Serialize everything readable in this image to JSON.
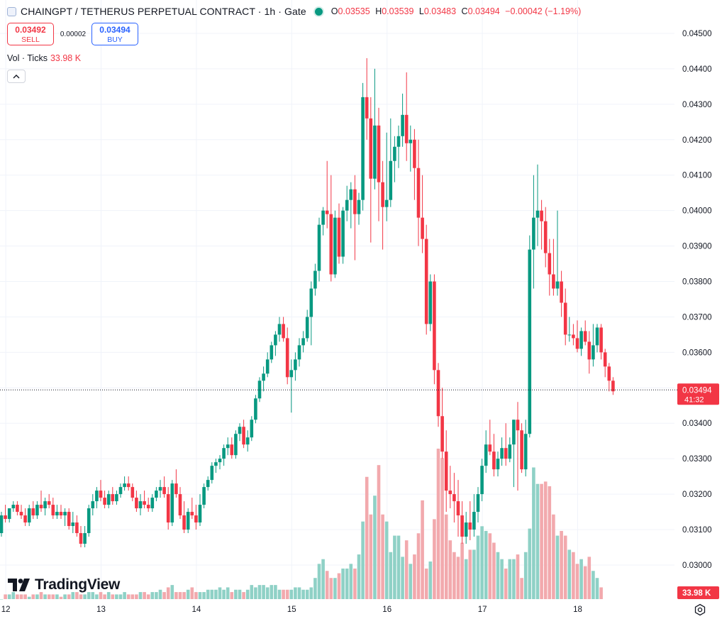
{
  "header": {
    "title": "CHAINGPT / TETHERUS PERPETUAL CONTRACT · 1h · Gate",
    "open_label": "O",
    "open": "0.03535",
    "high_label": "H",
    "high": "0.03539",
    "low_label": "L",
    "low": "0.03483",
    "close_label": "C",
    "close": "0.03494",
    "change": "−0.00042 (−1.19%)"
  },
  "trade": {
    "sell_price": "0.03492",
    "sell_label": "SELL",
    "spread": "0.00002",
    "buy_price": "0.03494",
    "buy_label": "BUY"
  },
  "volume_legend": {
    "label": "Vol · Ticks",
    "value": "33.98 K"
  },
  "watermark": "TradingView",
  "colors": {
    "up": "#089981",
    "down": "#f23645",
    "up_volume": "#8fd1c6",
    "down_volume": "#f2a9ad",
    "grid": "#f0f3fa"
  },
  "icons": {
    "collapse": "chevron-up-icon",
    "settings": "settings-icon",
    "logo": "tradingview-logo-icon"
  },
  "chart_data": {
    "type": "candlestick",
    "interval": "1h",
    "price_axis": {
      "min": 0.029,
      "max": 0.0455,
      "ticks": [
        "0.03000",
        "0.03100",
        "0.03200",
        "0.03300",
        "0.03400",
        "0.03500",
        "0.03600",
        "0.03700",
        "0.03800",
        "0.03900",
        "0.04000",
        "0.04100",
        "0.04200",
        "0.04300",
        "0.04400",
        "0.04500"
      ]
    },
    "time_axis": {
      "labels": [
        "12",
        "13",
        "14",
        "15",
        "16",
        "17",
        "18"
      ]
    },
    "last_price": {
      "price": "0.03494",
      "countdown": "41:32",
      "value": 0.03494
    },
    "last_volume_label": "33.98 K",
    "ohlc": [
      [
        0.0309,
        0.0315,
        0.0308,
        0.0314
      ],
      [
        0.0314,
        0.0317,
        0.0312,
        0.0313
      ],
      [
        0.0313,
        0.0316,
        0.0312,
        0.0316
      ],
      [
        0.0316,
        0.0318,
        0.0315,
        0.0317
      ],
      [
        0.0317,
        0.0318,
        0.0314,
        0.0315
      ],
      [
        0.0315,
        0.0317,
        0.0313,
        0.0314
      ],
      [
        0.0314,
        0.0316,
        0.0311,
        0.0312
      ],
      [
        0.0312,
        0.0317,
        0.0311,
        0.0316
      ],
      [
        0.0316,
        0.0318,
        0.0313,
        0.0314
      ],
      [
        0.0314,
        0.0318,
        0.0313,
        0.0317
      ],
      [
        0.0317,
        0.0321,
        0.0315,
        0.0316
      ],
      [
        0.0316,
        0.0319,
        0.0314,
        0.0318
      ],
      [
        0.0318,
        0.032,
        0.0316,
        0.0317
      ],
      [
        0.0317,
        0.0319,
        0.0313,
        0.0314
      ],
      [
        0.0314,
        0.0317,
        0.0313,
        0.0315
      ],
      [
        0.0315,
        0.0317,
        0.0313,
        0.0314
      ],
      [
        0.0314,
        0.0316,
        0.0311,
        0.0315
      ],
      [
        0.0315,
        0.0316,
        0.031,
        0.0311
      ],
      [
        0.0311,
        0.0315,
        0.0309,
        0.0312
      ],
      [
        0.0312,
        0.0314,
        0.0308,
        0.0309
      ],
      [
        0.0309,
        0.0311,
        0.0305,
        0.0306
      ],
      [
        0.0306,
        0.0311,
        0.0305,
        0.0309
      ],
      [
        0.0309,
        0.0317,
        0.0308,
        0.0316
      ],
      [
        0.0316,
        0.032,
        0.0314,
        0.0318
      ],
      [
        0.0318,
        0.0322,
        0.0316,
        0.0321
      ],
      [
        0.0321,
        0.0324,
        0.0318,
        0.0319
      ],
      [
        0.0319,
        0.0321,
        0.0316,
        0.0317
      ],
      [
        0.0317,
        0.0321,
        0.0316,
        0.032
      ],
      [
        0.032,
        0.0322,
        0.0317,
        0.0318
      ],
      [
        0.0318,
        0.0321,
        0.0317,
        0.032
      ],
      [
        0.032,
        0.0323,
        0.0319,
        0.0322
      ],
      [
        0.0322,
        0.0325,
        0.0321,
        0.0323
      ],
      [
        0.0323,
        0.0325,
        0.0321,
        0.0322
      ],
      [
        0.0322,
        0.0323,
        0.0318,
        0.0319
      ],
      [
        0.0319,
        0.0321,
        0.0315,
        0.0316
      ],
      [
        0.0316,
        0.032,
        0.0314,
        0.0318
      ],
      [
        0.0318,
        0.0321,
        0.0316,
        0.0317
      ],
      [
        0.0317,
        0.0319,
        0.0315,
        0.0316
      ],
      [
        0.0316,
        0.032,
        0.0315,
        0.0319
      ],
      [
        0.0319,
        0.0322,
        0.0318,
        0.0321
      ],
      [
        0.0321,
        0.0324,
        0.0319,
        0.0322
      ],
      [
        0.0322,
        0.0325,
        0.0319,
        0.032
      ],
      [
        0.032,
        0.0322,
        0.031,
        0.0312
      ],
      [
        0.0312,
        0.0324,
        0.0311,
        0.0323
      ],
      [
        0.0323,
        0.0327,
        0.0319,
        0.032
      ],
      [
        0.032,
        0.0322,
        0.0313,
        0.0314
      ],
      [
        0.0314,
        0.0318,
        0.0309,
        0.031
      ],
      [
        0.031,
        0.0316,
        0.0309,
        0.0315
      ],
      [
        0.0315,
        0.0319,
        0.0313,
        0.0314
      ],
      [
        0.0314,
        0.0317,
        0.031,
        0.0312
      ],
      [
        0.0312,
        0.032,
        0.0311,
        0.0317
      ],
      [
        0.0317,
        0.0323,
        0.0316,
        0.0322
      ],
      [
        0.0322,
        0.0325,
        0.0321,
        0.0324
      ],
      [
        0.0324,
        0.0329,
        0.0323,
        0.0328
      ],
      [
        0.0328,
        0.033,
        0.0326,
        0.0329
      ],
      [
        0.0329,
        0.0331,
        0.0327,
        0.033
      ],
      [
        0.033,
        0.0334,
        0.0328,
        0.0333
      ],
      [
        0.0333,
        0.0336,
        0.0331,
        0.0334
      ],
      [
        0.0334,
        0.0336,
        0.033,
        0.0331
      ],
      [
        0.0331,
        0.0338,
        0.033,
        0.0337
      ],
      [
        0.0337,
        0.034,
        0.0335,
        0.0339
      ],
      [
        0.0339,
        0.0341,
        0.0333,
        0.0334
      ],
      [
        0.0334,
        0.0338,
        0.0332,
        0.0336
      ],
      [
        0.0336,
        0.0342,
        0.0335,
        0.0341
      ],
      [
        0.0341,
        0.0348,
        0.034,
        0.0347
      ],
      [
        0.0347,
        0.0353,
        0.0346,
        0.0352
      ],
      [
        0.0352,
        0.0356,
        0.0349,
        0.0354
      ],
      [
        0.0354,
        0.036,
        0.0353,
        0.0358
      ],
      [
        0.0358,
        0.0363,
        0.0357,
        0.0362
      ],
      [
        0.0362,
        0.0366,
        0.0359,
        0.0365
      ],
      [
        0.0365,
        0.037,
        0.0363,
        0.0368
      ],
      [
        0.0368,
        0.037,
        0.0363,
        0.0364
      ],
      [
        0.0364,
        0.0367,
        0.0351,
        0.0353
      ],
      [
        0.0353,
        0.0358,
        0.0343,
        0.0355
      ],
      [
        0.0355,
        0.036,
        0.0352,
        0.0358
      ],
      [
        0.0358,
        0.0364,
        0.0356,
        0.0362
      ],
      [
        0.0362,
        0.0366,
        0.036,
        0.0364
      ],
      [
        0.0364,
        0.0372,
        0.0363,
        0.037
      ],
      [
        0.037,
        0.038,
        0.0362,
        0.0378
      ],
      [
        0.0378,
        0.0385,
        0.0376,
        0.0383
      ],
      [
        0.0383,
        0.0398,
        0.038,
        0.0396
      ],
      [
        0.0396,
        0.0401,
        0.0393,
        0.04
      ],
      [
        0.04,
        0.0414,
        0.0395,
        0.0399
      ],
      [
        0.0399,
        0.041,
        0.038,
        0.0382
      ],
      [
        0.0382,
        0.04,
        0.0381,
        0.0398
      ],
      [
        0.0398,
        0.0402,
        0.0385,
        0.0387
      ],
      [
        0.0387,
        0.0401,
        0.0385,
        0.04
      ],
      [
        0.04,
        0.0407,
        0.0397,
        0.0403
      ],
      [
        0.0403,
        0.0408,
        0.0395,
        0.0406
      ],
      [
        0.0406,
        0.041,
        0.0386,
        0.0399
      ],
      [
        0.0399,
        0.0405,
        0.0396,
        0.0403
      ],
      [
        0.0403,
        0.0436,
        0.04,
        0.0432
      ],
      [
        0.0432,
        0.0443,
        0.042,
        0.0426
      ],
      [
        0.0426,
        0.0432,
        0.0391,
        0.0409
      ],
      [
        0.0409,
        0.044,
        0.0406,
        0.0424
      ],
      [
        0.0424,
        0.0429,
        0.0397,
        0.0408
      ],
      [
        0.0408,
        0.0414,
        0.0389,
        0.0401
      ],
      [
        0.0401,
        0.0422,
        0.0397,
        0.0403
      ],
      [
        0.0403,
        0.0426,
        0.0401,
        0.0414
      ],
      [
        0.0414,
        0.0421,
        0.0408,
        0.0418
      ],
      [
        0.0418,
        0.0424,
        0.0412,
        0.0421
      ],
      [
        0.0421,
        0.0433,
        0.0418,
        0.0427
      ],
      [
        0.0427,
        0.0439,
        0.0414,
        0.0419
      ],
      [
        0.0419,
        0.0424,
        0.0411,
        0.042
      ],
      [
        0.042,
        0.0423,
        0.0403,
        0.0412
      ],
      [
        0.0412,
        0.042,
        0.039,
        0.0398
      ],
      [
        0.0398,
        0.041,
        0.0388,
        0.0392
      ],
      [
        0.0392,
        0.0396,
        0.0365,
        0.0368
      ],
      [
        0.0368,
        0.0382,
        0.0366,
        0.038
      ],
      [
        0.038,
        0.0382,
        0.0351,
        0.0355
      ],
      [
        0.0355,
        0.0357,
        0.0339,
        0.0342
      ],
      [
        0.0342,
        0.035,
        0.033,
        0.0332
      ],
      [
        0.0332,
        0.0338,
        0.0315,
        0.0321
      ],
      [
        0.0321,
        0.0328,
        0.0316,
        0.032
      ],
      [
        0.032,
        0.0326,
        0.0312,
        0.0318
      ],
      [
        0.0318,
        0.0324,
        0.0308,
        0.0314
      ],
      [
        0.0314,
        0.0318,
        0.0306,
        0.0308
      ],
      [
        0.0308,
        0.0315,
        0.0306,
        0.0312
      ],
      [
        0.0312,
        0.0318,
        0.0307,
        0.031
      ],
      [
        0.031,
        0.032,
        0.0308,
        0.0315
      ],
      [
        0.0315,
        0.0322,
        0.0312,
        0.032
      ],
      [
        0.032,
        0.033,
        0.0318,
        0.0328
      ],
      [
        0.0328,
        0.0338,
        0.0326,
        0.0334
      ],
      [
        0.0334,
        0.0341,
        0.0331,
        0.0332
      ],
      [
        0.0332,
        0.0337,
        0.0325,
        0.0327
      ],
      [
        0.0327,
        0.0332,
        0.0325,
        0.033
      ],
      [
        0.033,
        0.0336,
        0.0328,
        0.0333
      ],
      [
        0.0333,
        0.034,
        0.0328,
        0.033
      ],
      [
        0.033,
        0.0336,
        0.0329,
        0.0334
      ],
      [
        0.0334,
        0.0341,
        0.0322,
        0.0341
      ],
      [
        0.0341,
        0.0346,
        0.0321,
        0.0338
      ],
      [
        0.0338,
        0.034,
        0.0326,
        0.0327
      ],
      [
        0.0327,
        0.0341,
        0.0325,
        0.0337
      ],
      [
        0.0337,
        0.0393,
        0.0336,
        0.0389
      ],
      [
        0.0389,
        0.041,
        0.0378,
        0.0398
      ],
      [
        0.0398,
        0.0413,
        0.039,
        0.04
      ],
      [
        0.04,
        0.0403,
        0.0389,
        0.0397
      ],
      [
        0.0397,
        0.0401,
        0.0384,
        0.0388
      ],
      [
        0.0388,
        0.0392,
        0.0376,
        0.0382
      ],
      [
        0.0382,
        0.0392,
        0.0376,
        0.0378
      ],
      [
        0.0378,
        0.04,
        0.0376,
        0.038
      ],
      [
        0.038,
        0.0383,
        0.037,
        0.0374
      ],
      [
        0.0374,
        0.0378,
        0.0362,
        0.0365
      ],
      [
        0.0365,
        0.037,
        0.0363,
        0.0365
      ],
      [
        0.0365,
        0.0368,
        0.0362,
        0.0364
      ],
      [
        0.0364,
        0.0369,
        0.036,
        0.0361
      ],
      [
        0.0361,
        0.0367,
        0.0359,
        0.0366
      ],
      [
        0.0366,
        0.0369,
        0.0362,
        0.0363
      ],
      [
        0.0363,
        0.0366,
        0.0354,
        0.0358
      ],
      [
        0.0358,
        0.0368,
        0.0356,
        0.0362
      ],
      [
        0.0362,
        0.0368,
        0.036,
        0.0367
      ],
      [
        0.0367,
        0.0368,
        0.0358,
        0.036
      ],
      [
        0.036,
        0.0361,
        0.0353,
        0.0356
      ],
      [
        0.0356,
        0.0357,
        0.0349,
        0.0352
      ],
      [
        0.0352,
        0.0353,
        0.0348,
        0.0349
      ]
    ],
    "volume": [
      0,
      2,
      2,
      3,
      2,
      2,
      2,
      1,
      2,
      2,
      3,
      2,
      2,
      2,
      2,
      1,
      2,
      2,
      3,
      3,
      2,
      2,
      3,
      3,
      2,
      3,
      2,
      3,
      2,
      2,
      2,
      3,
      2,
      2,
      2,
      3,
      3,
      2,
      3,
      3,
      4,
      3,
      5,
      6,
      3,
      3,
      3,
      4,
      5,
      3,
      3,
      3,
      4,
      4,
      4,
      5,
      4,
      5,
      3,
      4,
      4,
      3,
      4,
      6,
      5,
      6,
      6,
      5,
      6,
      6,
      4,
      4,
      4,
      4,
      5,
      5,
      4,
      4,
      5,
      9,
      15,
      17,
      12,
      9,
      9,
      11,
      13,
      13,
      15,
      13,
      19,
      33,
      52,
      36,
      44,
      57,
      36,
      33,
      20,
      27,
      27,
      18,
      25,
      15,
      19,
      28,
      42,
      13,
      16,
      34,
      64,
      60,
      36,
      25,
      20,
      18,
      24,
      17,
      21,
      21,
      27,
      31,
      29,
      28,
      24,
      20,
      17,
      13,
      17,
      17,
      19,
      9,
      20,
      30,
      56,
      49,
      49,
      50,
      48,
      36,
      27,
      29,
      27,
      21,
      20,
      15,
      17,
      14,
      18,
      12,
      9,
      5
    ]
  }
}
